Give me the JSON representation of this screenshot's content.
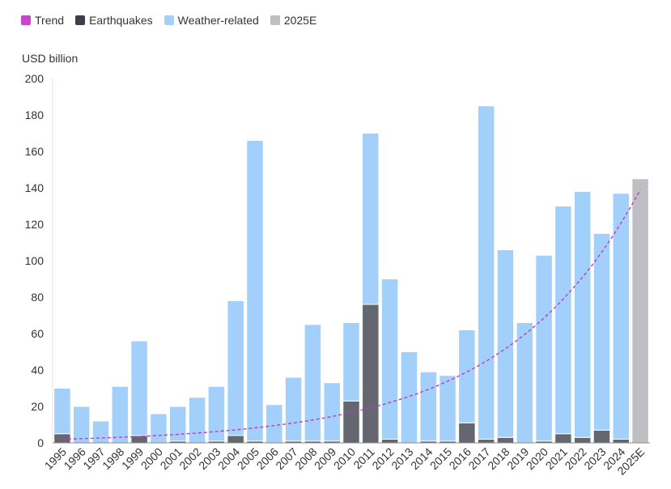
{
  "legend": [
    {
      "label": "Trend",
      "color": "#cc44cc"
    },
    {
      "label": "Earthquakes",
      "color": "#3a3f4c"
    },
    {
      "label": "Weather-related",
      "color": "#a3cffb"
    },
    {
      "label": "2025E",
      "color": "#bdbfc3"
    }
  ],
  "chart_data": {
    "type": "bar",
    "stacked": true,
    "ylabel": "USD billion",
    "ylim": [
      0,
      200
    ],
    "yticks": [
      0,
      20,
      40,
      60,
      80,
      100,
      120,
      140,
      160,
      180,
      200
    ],
    "categories": [
      "1995",
      "1996",
      "1997",
      "1998",
      "1999",
      "2000",
      "2001",
      "2002",
      "2003",
      "2004",
      "2005",
      "2006",
      "2007",
      "2008",
      "2009",
      "2010",
      "2011",
      "2012",
      "2013",
      "2014",
      "2015",
      "2016",
      "2017",
      "2018",
      "2019",
      "2020",
      "2021",
      "2022",
      "2023",
      "2024",
      "2025E"
    ],
    "series": [
      {
        "name": "Earthquakes",
        "color": "#646670",
        "values": [
          5,
          0,
          0,
          0,
          4,
          0,
          1,
          0,
          1,
          4,
          1,
          0,
          1,
          1,
          1,
          23,
          76,
          2,
          0,
          1,
          1,
          11,
          2,
          3,
          0,
          1,
          5,
          3,
          7,
          2,
          0
        ]
      },
      {
        "name": "Weather-related",
        "color": "#a3cffb",
        "values": [
          25,
          20,
          12,
          31,
          52,
          16,
          19,
          25,
          30,
          74,
          165,
          21,
          35,
          64,
          32,
          43,
          94,
          88,
          50,
          38,
          36,
          51,
          183,
          103,
          66,
          102,
          125,
          135,
          108,
          135,
          0
        ]
      },
      {
        "name": "2025E",
        "color": "#bdbfc3",
        "values": [
          0,
          0,
          0,
          0,
          0,
          0,
          0,
          0,
          0,
          0,
          0,
          0,
          0,
          0,
          0,
          0,
          0,
          0,
          0,
          0,
          0,
          0,
          0,
          0,
          0,
          0,
          0,
          0,
          0,
          0,
          145
        ]
      }
    ],
    "trend": {
      "name": "Trend",
      "style": "dashed",
      "color": "#c03ac0",
      "start": 2,
      "end": 139
    },
    "grid": false,
    "legend_position": "top-left"
  }
}
